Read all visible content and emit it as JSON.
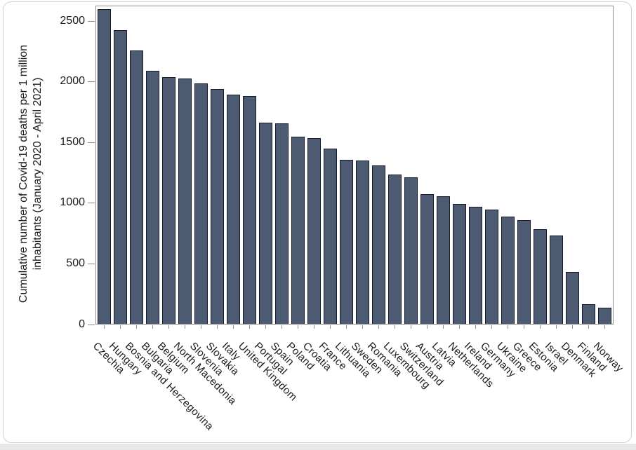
{
  "page": {
    "background_strip_color": "#e7e7e7"
  },
  "chart_data": {
    "type": "bar",
    "title": "",
    "xlabel": "",
    "ylabel": "Cumulative number of Covid-19 deaths per 1 million inhabitants (January 2020 - April 2021)",
    "ylabel_line1": "Cumulative number of Covid-19 deaths per 1 million",
    "ylabel_line2": "inhabitants (January 2020 - April 2021)",
    "categories": [
      "Czechia",
      "Hungary",
      "Bosnia and Herzegovina",
      "Bulgaria",
      "Belgium",
      "North Macedonia",
      "Slovenia",
      "Slovakia",
      "Italy",
      "United Kingdom",
      "Portugal",
      "Spain",
      "Poland",
      "Croatia",
      "France",
      "Lithuania",
      "Sweden",
      "Romania",
      "Luxembourg",
      "Switzerland",
      "Austria",
      "Latvia",
      "Netherlands",
      "Ireland",
      "Germany",
      "Ukraine",
      "Greece",
      "Estonia",
      "Israel",
      "Denmark",
      "Finland",
      "Norway"
    ],
    "values": [
      2600,
      2430,
      2260,
      2090,
      2040,
      2025,
      1990,
      1940,
      1895,
      1880,
      1660,
      1655,
      1545,
      1535,
      1450,
      1355,
      1350,
      1310,
      1235,
      1210,
      1070,
      1055,
      990,
      970,
      945,
      885,
      855,
      780,
      730,
      430,
      165,
      135
    ],
    "yticks": [
      "0",
      "500",
      "1000",
      "1500",
      "2000",
      "2500"
    ],
    "ytick_values": [
      0,
      500,
      1000,
      1500,
      2000,
      2500
    ],
    "ylim": [
      0,
      2624
    ],
    "grid": false,
    "legend": null,
    "bar_orientation": "vertical",
    "x_label_rotation_deg": 45,
    "bar_fill_color": "#4c5b71",
    "bar_border_color": "#151b28",
    "axis_color": "#8c8c8c",
    "text_color": "#1a1a1a"
  }
}
